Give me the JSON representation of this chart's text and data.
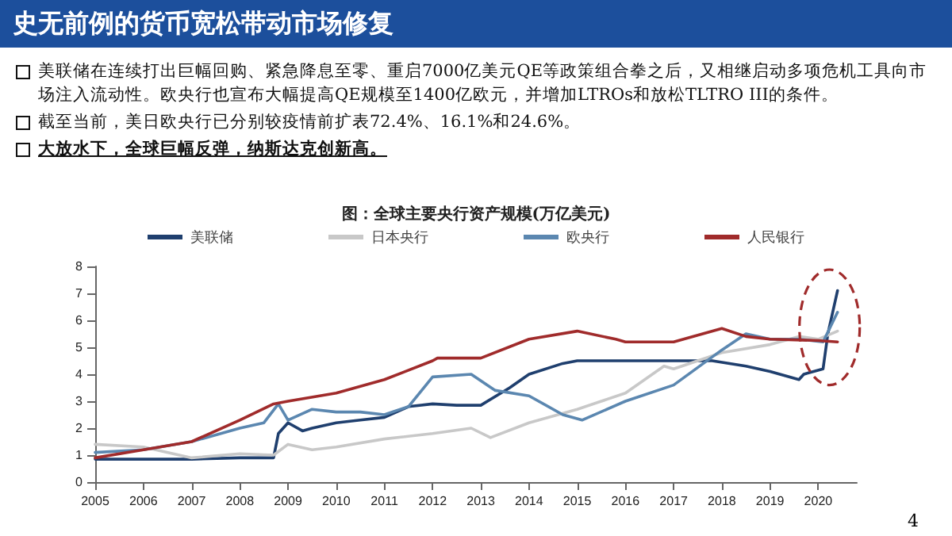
{
  "chart_data": {
    "type": "line",
    "title": "图：全球主要央行资产规模(万亿美元)",
    "annotations": [
      "史无前例的货币宽松带动市场修复",
      "美联储在连续打出巨幅回购、紧急降息至零、重启7000亿美元QE等政策组合拳之后，又相继启动多项危机工具向市场注入流动性。欧央行也宣布大幅提高QE规模至1400亿欧元，并增加LTROs和放松TLTRO III的条件。",
      "截至当前，美日欧央行已分别较疫情前扩表72.4%、16.1%和24.6%。",
      "大放水下，全球巨幅反弹，纳斯达克创新高。",
      "4"
    ],
    "legend": "top",
    "xlim": [
      2005,
      2020.8
    ],
    "xticks": [
      2005,
      2006,
      2007,
      2008,
      2009,
      2010,
      2011,
      2012,
      2013,
      2014,
      2015,
      2016,
      2017,
      2018,
      2019,
      2020
    ],
    "ylim": [
      0,
      8
    ],
    "yticks": [
      0,
      1,
      2,
      3,
      4,
      5,
      6,
      7,
      8
    ],
    "series": [
      {
        "name": "美联储",
        "color": "#1f3f6e",
        "x": [
          2005,
          2006,
          2007,
          2008,
          2008.7,
          2008.8,
          2009,
          2009.3,
          2009.5,
          2010,
          2010.5,
          2011,
          2011.5,
          2012,
          2012.5,
          2013,
          2013.6,
          2014,
          2014.7,
          2015,
          2016,
          2017,
          2017.8,
          2018.5,
          2019,
          2019.6,
          2019.7,
          2020.1,
          2020.2,
          2020.4
        ],
        "values": [
          0.85,
          0.85,
          0.85,
          0.9,
          0.9,
          1.8,
          2.2,
          1.9,
          2.0,
          2.2,
          2.3,
          2.4,
          2.8,
          2.9,
          2.85,
          2.85,
          3.5,
          4.0,
          4.4,
          4.5,
          4.5,
          4.5,
          4.5,
          4.3,
          4.1,
          3.8,
          4.0,
          4.2,
          5.5,
          7.1
        ]
      },
      {
        "name": "日本央行",
        "color": "#c8c8c8",
        "x": [
          2005,
          2006,
          2007,
          2008,
          2008.7,
          2009,
          2009.5,
          2010,
          2011,
          2012,
          2012.8,
          2013.2,
          2014,
          2015,
          2016,
          2016.8,
          2017,
          2018,
          2019,
          2019.6,
          2020,
          2020.4
        ],
        "values": [
          1.4,
          1.3,
          0.9,
          1.05,
          1.0,
          1.4,
          1.2,
          1.3,
          1.6,
          1.8,
          2.0,
          1.65,
          2.2,
          2.7,
          3.3,
          4.3,
          4.2,
          4.8,
          5.1,
          5.4,
          5.3,
          5.6
        ]
      },
      {
        "name": "欧央行",
        "color": "#5b87b0",
        "x": [
          2005,
          2006,
          2007,
          2008,
          2008.5,
          2008.8,
          2009,
          2009.5,
          2010,
          2010.5,
          2011,
          2011.5,
          2012,
          2012.8,
          2013.3,
          2014,
          2014.7,
          2015.1,
          2016,
          2017,
          2018,
          2018.5,
          2019,
          2019.6,
          2020.1,
          2020.4
        ],
        "values": [
          1.1,
          1.2,
          1.5,
          2.0,
          2.2,
          2.9,
          2.3,
          2.7,
          2.6,
          2.6,
          2.5,
          2.8,
          3.9,
          4.0,
          3.4,
          3.2,
          2.5,
          2.3,
          3.0,
          3.6,
          4.9,
          5.5,
          5.3,
          5.3,
          5.2,
          6.3
        ]
      },
      {
        "name": "人民银行",
        "color": "#a02b2b",
        "x": [
          2005,
          2006,
          2007,
          2008,
          2008.7,
          2009,
          2010,
          2011,
          2012,
          2012.1,
          2013,
          2014,
          2015,
          2015.8,
          2016,
          2017,
          2018,
          2018.5,
          2019,
          2020,
          2020.4
        ],
        "values": [
          0.9,
          1.2,
          1.5,
          2.3,
          2.9,
          3.0,
          3.3,
          3.8,
          4.5,
          4.6,
          4.6,
          5.3,
          5.6,
          5.3,
          5.2,
          5.2,
          5.7,
          5.4,
          5.3,
          5.25,
          5.2
        ]
      }
    ]
  }
}
